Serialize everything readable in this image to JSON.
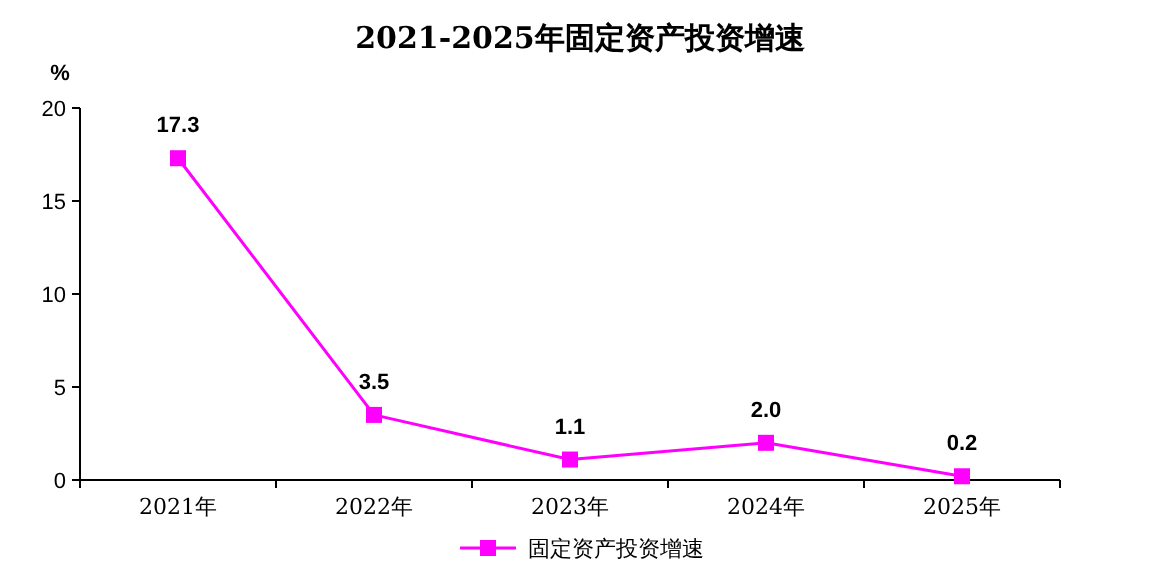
{
  "chart_data": {
    "type": "line",
    "title": "2021-2025年固定资产投资增速",
    "ylabel": "%",
    "categories": [
      "2021年",
      "2022年",
      "2023年",
      "2024年",
      "2025年"
    ],
    "series": [
      {
        "name": "固定资产投资增速",
        "color": "#ff00ff",
        "values": [
          17.3,
          3.5,
          1.1,
          2.0,
          0.2
        ],
        "value_labels": [
          "17.3",
          "3.5",
          "1.1",
          "2.0",
          "0.2"
        ]
      }
    ],
    "ylim": [
      0,
      20
    ],
    "yticks": [
      0,
      5,
      10,
      15,
      20
    ],
    "marker": "square",
    "line_style": "solid",
    "legend": "bottom"
  }
}
